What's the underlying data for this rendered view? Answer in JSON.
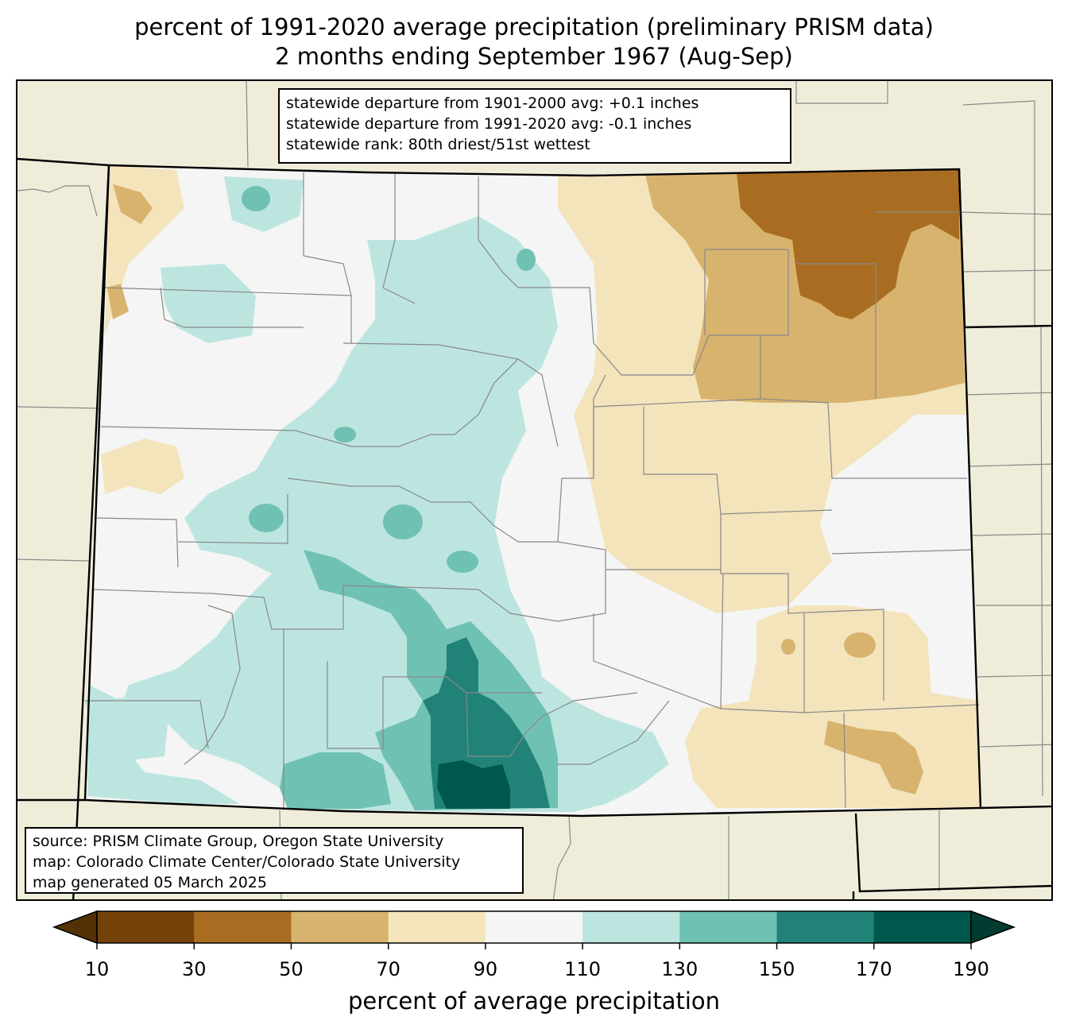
{
  "title": {
    "line1": "percent of 1991-2020 average precipitation (preliminary PRISM data)",
    "line2": "2 months ending September 1967 (Aug-Sep)"
  },
  "stats": {
    "departure_1901_2000": "statewide departure from 1901-2000 avg: +0.1 inches",
    "departure_1991_2020": "statewide departure from 1991-2020 avg: -0.1 inches",
    "rank": "statewide rank: 80th driest/51st wettest"
  },
  "credits": {
    "source": "source: PRISM Climate Group, Oregon State University",
    "map": "map: Colorado Climate Center/Colorado State University",
    "generated": "map generated 05 March 2025"
  },
  "colorbar": {
    "label": "percent of average precipitation",
    "ticks": [
      "10",
      "30",
      "50",
      "70",
      "90",
      "110",
      "130",
      "150",
      "170",
      "190"
    ],
    "colors": [
      "#744209",
      "#a96d22",
      "#d8b36e",
      "#f3e4bc",
      "#f4f5f4",
      "#bde5e0",
      "#6fc1b4",
      "#218377",
      "#00574b"
    ],
    "under_color": "#543005",
    "over_color": "#003c30"
  },
  "map_colors": {
    "background": "#efedda",
    "state_fill": "#f4f5f4",
    "county_line": "#888888",
    "state_line": "#000000"
  }
}
